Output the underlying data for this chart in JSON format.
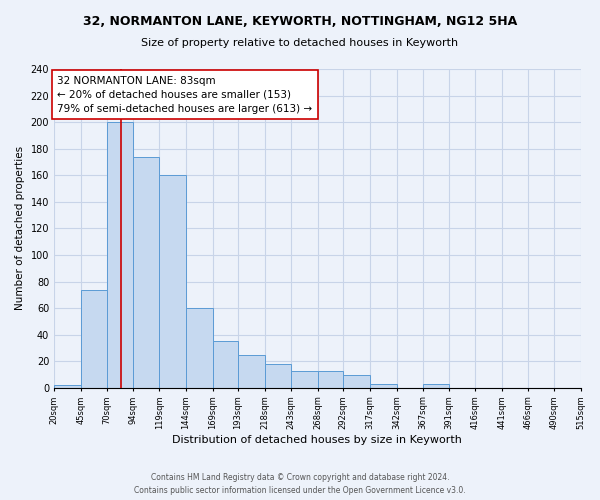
{
  "title": "32, NORMANTON LANE, KEYWORTH, NOTTINGHAM, NG12 5HA",
  "subtitle": "Size of property relative to detached houses in Keyworth",
  "xlabel": "Distribution of detached houses by size in Keyworth",
  "ylabel": "Number of detached properties",
  "bar_edges": [
    20,
    45,
    70,
    94,
    119,
    144,
    169,
    193,
    218,
    243,
    268,
    292,
    317,
    342,
    367,
    391,
    416,
    441,
    466,
    490,
    515
  ],
  "bar_heights": [
    2,
    74,
    200,
    174,
    160,
    60,
    35,
    25,
    18,
    13,
    13,
    10,
    3,
    0,
    3,
    0,
    0,
    0,
    0,
    0
  ],
  "bar_color": "#c6d9f0",
  "bar_edgecolor": "#5b9bd5",
  "vline_x": 83,
  "vline_color": "#cc0000",
  "annotation_line1": "32 NORMANTON LANE: 83sqm",
  "annotation_line2": "← 20% of detached houses are smaller (153)",
  "annotation_line3": "79% of semi-detached houses are larger (613) →",
  "annotation_box_edgecolor": "#cc0000",
  "annotation_box_facecolor": "#ffffff",
  "ylim": [
    0,
    240
  ],
  "yticks": [
    0,
    20,
    40,
    60,
    80,
    100,
    120,
    140,
    160,
    180,
    200,
    220,
    240
  ],
  "tick_labels": [
    "20sqm",
    "45sqm",
    "70sqm",
    "94sqm",
    "119sqm",
    "144sqm",
    "169sqm",
    "193sqm",
    "218sqm",
    "243sqm",
    "268sqm",
    "292sqm",
    "317sqm",
    "342sqm",
    "367sqm",
    "391sqm",
    "416sqm",
    "441sqm",
    "466sqm",
    "490sqm",
    "515sqm"
  ],
  "footer_line1": "Contains HM Land Registry data © Crown copyright and database right 2024.",
  "footer_line2": "Contains public sector information licensed under the Open Government Licence v3.0.",
  "grid_color": "#c8d4e8",
  "bg_color": "#edf2fa"
}
